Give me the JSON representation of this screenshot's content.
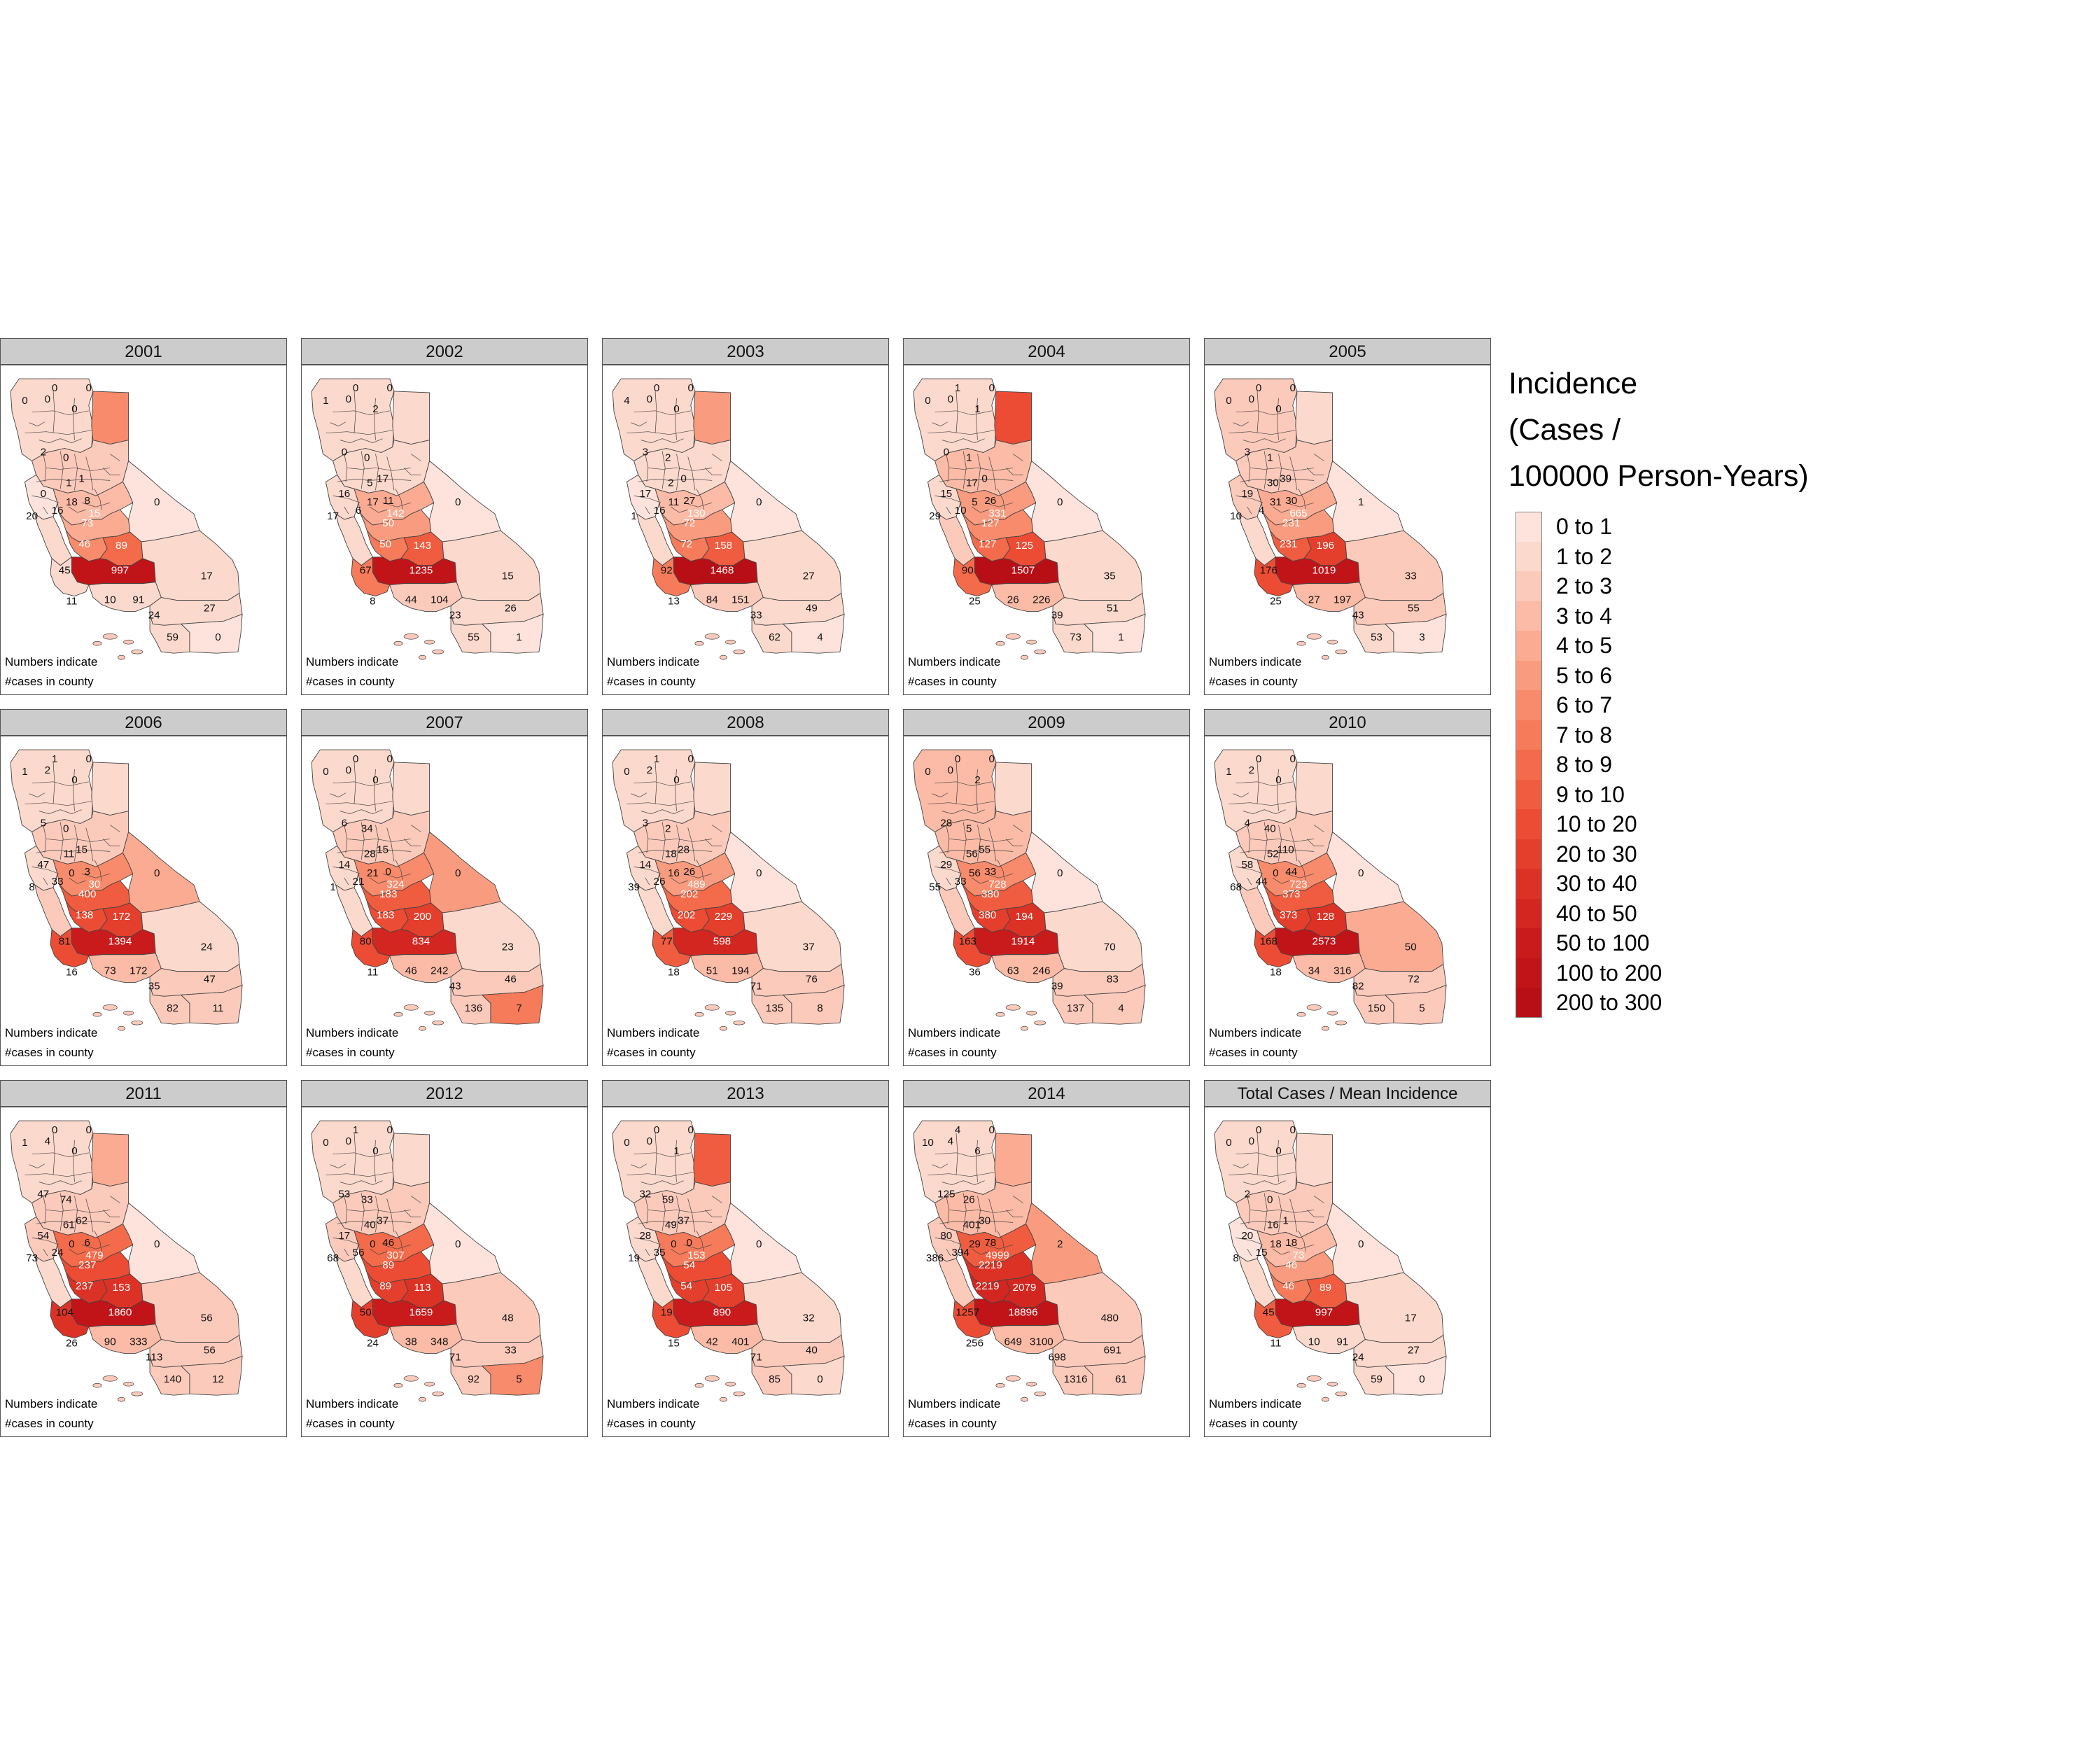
{
  "legend": {
    "title_lines": [
      "Incidence",
      "(Cases /",
      "100000 Person-Years)"
    ],
    "items": [
      {
        "label": "0 to 1",
        "color": "#fde3dc"
      },
      {
        "label": "1 to 2",
        "color": "#fcd9cd"
      },
      {
        "label": "2 to 3",
        "color": "#fccabb"
      },
      {
        "label": "3 to 4",
        "color": "#fbbba6"
      },
      {
        "label": "4 to 5",
        "color": "#fbab92"
      },
      {
        "label": "5 to 6",
        "color": "#f99b7e"
      },
      {
        "label": "6 to 7",
        "color": "#f88b6b"
      },
      {
        "label": "7 to 8",
        "color": "#f67b5a"
      },
      {
        "label": "8 to 9",
        "color": "#f36b4a"
      },
      {
        "label": "9 to 10",
        "color": "#f05c3f"
      },
      {
        "label": "10 to 20",
        "color": "#ec4c34"
      },
      {
        "label": "20 to 30",
        "color": "#e43f2c"
      },
      {
        "label": "30 to 40",
        "color": "#dc3226"
      },
      {
        "label": "40 to 50",
        "color": "#d32620"
      },
      {
        "label": "50 to 100",
        "color": "#ca1b1c"
      },
      {
        "label": "100 to 200",
        "color": "#c01419"
      },
      {
        "label": "200 to 300",
        "color": "#b80f17"
      }
    ]
  },
  "note_lines": [
    "Numbers indicate",
    "#cases in county"
  ],
  "panels": [
    {
      "title": "2001",
      "levels": {
        "north": 1,
        "sac": 2,
        "sfbay": 0,
        "coast": 1,
        "sj": 3,
        "centralvalley": 4,
        "fresno": 6,
        "tulare": 8,
        "kern": 15,
        "sb": 1,
        "la": 1,
        "sbd": 1,
        "inyo": 0,
        "riv": 1,
        "sd": 1,
        "imp": 0,
        "ne": 6
      },
      "labels": {
        "n1": "0",
        "n2": "0",
        "n3": "0",
        "n4": "0",
        "n5": "0",
        "s1": "2",
        "s2": "0",
        "s3": "1",
        "b1": "0",
        "b2": "1",
        "b3": "20",
        "b4": "16",
        "c1": "8",
        "sj1": "15",
        "sj2": "18",
        "cv1": "73",
        "fr": "46",
        "tu": "89",
        "mono": "0",
        "kern": "997",
        "sbc": "45",
        "ven": "11",
        "la": "10",
        "ora": "91",
        "sbd": "17",
        "riv": "27",
        "sdg": "24",
        "sd": "59",
        "imp": "0"
      }
    },
    {
      "title": "2002",
      "levels": {
        "north": 1,
        "sac": 1,
        "sfbay": 1,
        "coast": 1,
        "sj": 4,
        "centralvalley": 5,
        "fresno": 7,
        "tulare": 9,
        "kern": 15,
        "sb": 7,
        "la": 2,
        "sbd": 1,
        "inyo": 0,
        "riv": 1,
        "sd": 1,
        "imp": 0,
        "ne": 1
      },
      "labels": {
        "n1": "0",
        "n2": "0",
        "n3": "1",
        "n4": "0",
        "n5": "2",
        "s1": "0",
        "s2": "0",
        "s3": "17",
        "b1": "16",
        "b2": "5",
        "b3": "17",
        "b4": "6",
        "c1": "11",
        "sj1": "142",
        "sj2": "17",
        "cv1": "50",
        "fr": "50",
        "tu": "143",
        "mono": "0",
        "kern": "1235",
        "sbc": "67",
        "ven": "8",
        "la": "44",
        "ora": "104",
        "sbd": "15",
        "riv": "26",
        "sdg": "23",
        "sd": "55",
        "imp": "1"
      }
    },
    {
      "title": "2003",
      "levels": {
        "north": 1,
        "sac": 1,
        "sfbay": 0,
        "coast": 1,
        "sj": 3,
        "centralvalley": 5,
        "fresno": 7,
        "tulare": 9,
        "kern": 16,
        "sb": 7,
        "la": 2,
        "sbd": 1,
        "inyo": 0,
        "riv": 1,
        "sd": 1,
        "imp": 0,
        "ne": 5
      },
      "labels": {
        "n1": "0",
        "n2": "0",
        "n3": "4",
        "n4": "0",
        "n5": "0",
        "s1": "3",
        "s2": "2",
        "s3": "0",
        "b1": "17",
        "b2": "2",
        "b3": "1",
        "b4": "16",
        "c1": "27",
        "sj1": "130",
        "sj2": "11",
        "cv1": "72",
        "fr": "72",
        "tu": "158",
        "mono": "0",
        "kern": "1468",
        "sbc": "92",
        "ven": "13",
        "la": "84",
        "ora": "151",
        "sbd": "27",
        "riv": "49",
        "sdg": "33",
        "sd": "62",
        "imp": "4"
      }
    },
    {
      "title": "2004",
      "levels": {
        "north": 1,
        "sac": 3,
        "sfbay": 1,
        "coast": 2,
        "sj": 5,
        "centralvalley": 6,
        "fresno": 8,
        "tulare": 10,
        "kern": 16,
        "sb": 8,
        "la": 3,
        "sbd": 1,
        "inyo": 0,
        "riv": 1,
        "sd": 1,
        "imp": 0,
        "ne": 10
      },
      "labels": {
        "n1": "1",
        "n2": "0",
        "n3": "0",
        "n4": "0",
        "n5": "1",
        "s1": "0",
        "s2": "1",
        "s3": "0",
        "b1": "15",
        "b2": "17",
        "b3": "29",
        "b4": "10",
        "c1": "26",
        "sj1": "331",
        "sj2": "5",
        "cv1": "127",
        "fr": "127",
        "tu": "125",
        "mono": "0",
        "kern": "1507",
        "sbc": "90",
        "ven": "25",
        "la": "26",
        "ora": "226",
        "sbd": "35",
        "riv": "51",
        "sdg": "39",
        "sd": "73",
        "imp": "1"
      }
    },
    {
      "title": "2005",
      "levels": {
        "north": 2,
        "sac": 2,
        "sfbay": 2,
        "coast": 1,
        "sj": 4,
        "centralvalley": 5,
        "fresno": 9,
        "tulare": 11,
        "kern": 15,
        "sb": 10,
        "la": 3,
        "sbd": 2,
        "inyo": 0,
        "riv": 2,
        "sd": 1,
        "imp": 0,
        "ne": 1
      },
      "labels": {
        "n1": "0",
        "n2": "0",
        "n3": "0",
        "n4": "0",
        "n5": "0",
        "s1": "3",
        "s2": "1",
        "s3": "39",
        "b1": "19",
        "b2": "30",
        "b3": "10",
        "b4": "4",
        "c1": "30",
        "sj1": "665",
        "sj2": "31",
        "cv1": "231",
        "fr": "231",
        "tu": "196",
        "mono": "1",
        "kern": "1019",
        "sbc": "176",
        "ven": "25",
        "la": "27",
        "ora": "197",
        "sbd": "33",
        "riv": "55",
        "sdg": "43",
        "sd": "53",
        "imp": "3"
      }
    },
    {
      "title": "2006",
      "levels": {
        "north": 1,
        "sac": 2,
        "sfbay": 1,
        "coast": 2,
        "sj": 6,
        "centralvalley": 9,
        "fresno": 10,
        "tulare": 11,
        "kern": 14,
        "sb": 10,
        "la": 3,
        "sbd": 1,
        "inyo": 4,
        "riv": 2,
        "sd": 2,
        "imp": 2,
        "ne": 1
      },
      "labels": {
        "n1": "1",
        "n2": "0",
        "n3": "1",
        "n4": "2",
        "n5": "0",
        "s1": "5",
        "s2": "0",
        "s3": "15",
        "b1": "47",
        "b2": "11",
        "b3": "8",
        "b4": "33",
        "c1": "3",
        "sj1": "30",
        "sj2": "0",
        "cv1": "400",
        "fr": "138",
        "tu": "172",
        "mono": "0",
        "kern": "1394",
        "sbc": "81",
        "ven": "16",
        "la": "73",
        "ora": "172",
        "sbd": "24",
        "riv": "47",
        "sdg": "35",
        "sd": "82",
        "imp": "11"
      }
    },
    {
      "title": "2007",
      "levels": {
        "north": 1,
        "sac": 2,
        "sfbay": 1,
        "coast": 1,
        "sj": 6,
        "centralvalley": 9,
        "fresno": 10,
        "tulare": 11,
        "kern": 13,
        "sb": 10,
        "la": 3,
        "sbd": 1,
        "inyo": 5,
        "riv": 2,
        "sd": 2,
        "imp": 7,
        "ne": 1
      },
      "labels": {
        "n1": "0",
        "n2": "0",
        "n3": "0",
        "n4": "0",
        "n5": "0",
        "s1": "6",
        "s2": "34",
        "s3": "15",
        "b1": "14",
        "b2": "28",
        "b3": "1",
        "b4": "21",
        "c1": "0",
        "sj1": "324",
        "sj2": "21",
        "cv1": "183",
        "fr": "183",
        "tu": "200",
        "mono": "0",
        "kern": "834",
        "sbc": "80",
        "ven": "11",
        "la": "46",
        "ora": "242",
        "sbd": "23",
        "riv": "46",
        "sdg": "43",
        "sd": "136",
        "imp": "7"
      }
    },
    {
      "title": "2008",
      "levels": {
        "north": 1,
        "sac": 2,
        "sfbay": 1,
        "coast": 1,
        "sj": 5,
        "centralvalley": 8,
        "fresno": 10,
        "tulare": 11,
        "kern": 13,
        "sb": 9,
        "la": 3,
        "sbd": 1,
        "inyo": 0,
        "riv": 2,
        "sd": 2,
        "imp": 2,
        "ne": 1
      },
      "labels": {
        "n1": "1",
        "n2": "0",
        "n3": "0",
        "n4": "2",
        "n5": "0",
        "s1": "3",
        "s2": "2",
        "s3": "28",
        "b1": "14",
        "b2": "18",
        "b3": "39",
        "b4": "26",
        "c1": "26",
        "sj1": "489",
        "sj2": "16",
        "cv1": "202",
        "fr": "202",
        "tu": "229",
        "mono": "0",
        "kern": "598",
        "sbc": "77",
        "ven": "18",
        "la": "51",
        "ora": "194",
        "sbd": "37",
        "riv": "76",
        "sdg": "71",
        "sd": "135",
        "imp": "8"
      }
    },
    {
      "title": "2009",
      "levels": {
        "north": 3,
        "sac": 3,
        "sfbay": 1,
        "coast": 2,
        "sj": 6,
        "centralvalley": 9,
        "fresno": 11,
        "tulare": 12,
        "kern": 14,
        "sb": 10,
        "la": 3,
        "sbd": 1,
        "inyo": 0,
        "riv": 2,
        "sd": 2,
        "imp": 2,
        "ne": 1
      },
      "labels": {
        "n1": "0",
        "n2": "0",
        "n3": "0",
        "n4": "0",
        "n5": "2",
        "s1": "28",
        "s2": "5",
        "s3": "55",
        "b1": "29",
        "b2": "56",
        "b3": "55",
        "b4": "33",
        "c1": "33",
        "sj1": "728",
        "sj2": "56",
        "cv1": "380",
        "fr": "380",
        "tu": "194",
        "mono": "0",
        "kern": "1914",
        "sbc": "163",
        "ven": "36",
        "la": "63",
        "ora": "246",
        "sbd": "70",
        "riv": "83",
        "sdg": "39",
        "sd": "137",
        "imp": "4"
      }
    },
    {
      "title": "2010",
      "levels": {
        "north": 1,
        "sac": 2,
        "sfbay": 1,
        "coast": 2,
        "sj": 6,
        "centralvalley": 9,
        "fresno": 11,
        "tulare": 12,
        "kern": 15,
        "sb": 10,
        "la": 3,
        "sbd": 4,
        "inyo": 0,
        "riv": 2,
        "sd": 2,
        "imp": 2,
        "ne": 1
      },
      "labels": {
        "n1": "0",
        "n2": "0",
        "n3": "1",
        "n4": "2",
        "n5": "0",
        "s1": "4",
        "s2": "40",
        "s3": "110",
        "b1": "58",
        "b2": "52",
        "b3": "68",
        "b4": "44",
        "c1": "44",
        "sj1": "723",
        "sj2": "0",
        "cv1": "373",
        "fr": "373",
        "tu": "128",
        "mono": "0",
        "kern": "2573",
        "sbc": "168",
        "ven": "18",
        "la": "34",
        "ora": "316",
        "sbd": "50",
        "riv": "72",
        "sdg": "82",
        "sd": "150",
        "imp": "5"
      }
    },
    {
      "title": "2011",
      "levels": {
        "north": 1,
        "sac": 2,
        "sfbay": 2,
        "coast": 1,
        "sj": 8,
        "centralvalley": 10,
        "fresno": 12,
        "tulare": 12,
        "kern": 15,
        "sb": 12,
        "la": 3,
        "sbd": 2,
        "inyo": 0,
        "riv": 2,
        "sd": 2,
        "imp": 2,
        "ne": 4
      },
      "labels": {
        "n1": "0",
        "n2": "0",
        "n3": "1",
        "n4": "4",
        "n5": "0",
        "s1": "47",
        "s2": "74",
        "s3": "62",
        "b1": "54",
        "b2": "61",
        "b3": "73",
        "b4": "24",
        "c1": "6",
        "sj1": "479",
        "sj2": "0",
        "cv1": "237",
        "fr": "237",
        "tu": "153",
        "mono": "0",
        "kern": "1860",
        "sbc": "104",
        "ven": "26",
        "la": "90",
        "ora": "333",
        "sbd": "56",
        "riv": "56",
        "sdg": "113",
        "sd": "140",
        "imp": "12"
      }
    },
    {
      "title": "2012",
      "levels": {
        "north": 1,
        "sac": 2,
        "sfbay": 2,
        "coast": 1,
        "sj": 8,
        "centralvalley": 10,
        "fresno": 11,
        "tulare": 12,
        "kern": 14,
        "sb": 11,
        "la": 3,
        "sbd": 2,
        "inyo": 0,
        "riv": 2,
        "sd": 2,
        "imp": 6,
        "ne": 1
      },
      "labels": {
        "n1": "1",
        "n2": "0",
        "n3": "0",
        "n4": "0",
        "n5": "0",
        "s1": "53",
        "s2": "33",
        "s3": "37",
        "b1": "17",
        "b2": "40",
        "b3": "68",
        "b4": "56",
        "c1": "46",
        "sj1": "307",
        "sj2": "0",
        "cv1": "89",
        "fr": "89",
        "tu": "113",
        "mono": "0",
        "kern": "1659",
        "sbc": "50",
        "ven": "24",
        "la": "38",
        "ora": "348",
        "sbd": "48",
        "riv": "33",
        "sdg": "71",
        "sd": "92",
        "imp": "5"
      }
    },
    {
      "title": "2013",
      "levels": {
        "north": 1,
        "sac": 2,
        "sfbay": 1,
        "coast": 1,
        "sj": 7,
        "centralvalley": 10,
        "fresno": 11,
        "tulare": 11,
        "kern": 14,
        "sb": 10,
        "la": 3,
        "sbd": 1,
        "inyo": 0,
        "riv": 2,
        "sd": 2,
        "imp": 1,
        "ne": 9
      },
      "labels": {
        "n1": "0",
        "n2": "0",
        "n3": "0",
        "n4": "0",
        "n5": "1",
        "s1": "32",
        "s2": "59",
        "s3": "37",
        "b1": "28",
        "b2": "49",
        "b3": "19",
        "b4": "35",
        "c1": "0",
        "sj1": "153",
        "sj2": "0",
        "cv1": "54",
        "fr": "54",
        "tu": "105",
        "mono": "0",
        "kern": "890",
        "sbc": "19",
        "ven": "15",
        "la": "42",
        "ora": "401",
        "sbd": "32",
        "riv": "40",
        "sdg": "71",
        "sd": "85",
        "imp": "0"
      }
    },
    {
      "title": "2014",
      "levels": {
        "north": 1,
        "sac": 3,
        "sfbay": 2,
        "coast": 2,
        "sj": 9,
        "centralvalley": 12,
        "fresno": 13,
        "tulare": 13,
        "kern": 15,
        "sb": 10,
        "la": 3,
        "sbd": 2,
        "inyo": 5,
        "riv": 2,
        "sd": 2,
        "imp": 2,
        "ne": 4
      },
      "labels": {
        "n1": "4",
        "n2": "0",
        "n3": "10",
        "n4": "4",
        "n5": "6",
        "s1": "125",
        "s2": "26",
        "s3": "30",
        "b1": "80",
        "b2": "401",
        "b3": "386",
        "b4": "394",
        "c1": "78",
        "sj1": "4999",
        "sj2": "29",
        "cv1": "2219",
        "fr": "2219",
        "tu": "2079",
        "mono": "2",
        "kern": "18896",
        "sbc": "1257",
        "ven": "256",
        "la": "649",
        "ora": "3100",
        "sbd": "480",
        "riv": "691",
        "sdg": "698",
        "sd": "1316",
        "imp": "61"
      }
    },
    {
      "title": "Total Cases / Mean Incidence",
      "levels": {
        "north": 1,
        "sac": 2,
        "sfbay": 0,
        "coast": 1,
        "sj": 3,
        "centralvalley": 5,
        "fresno": 7,
        "tulare": 9,
        "kern": 15,
        "sb": 9,
        "la": 1,
        "sbd": 1,
        "inyo": 0,
        "riv": 1,
        "sd": 1,
        "imp": 0,
        "ne": 1
      },
      "labels": {
        "n1": "0",
        "n2": "0",
        "n3": "0",
        "n4": "0",
        "n5": "0",
        "s1": "2",
        "s2": "0",
        "s3": "1",
        "b1": "20",
        "b2": "16",
        "b3": "8",
        "b4": "15",
        "c1": "18",
        "sj1": "73",
        "sj2": "18",
        "cv1": "46",
        "fr": "46",
        "tu": "89",
        "mono": "0",
        "kern": "997",
        "sbc": "45",
        "ven": "11",
        "la": "10",
        "ora": "91",
        "sbd": "17",
        "riv": "27",
        "sdg": "24",
        "sd": "59",
        "imp": "0"
      }
    }
  ]
}
